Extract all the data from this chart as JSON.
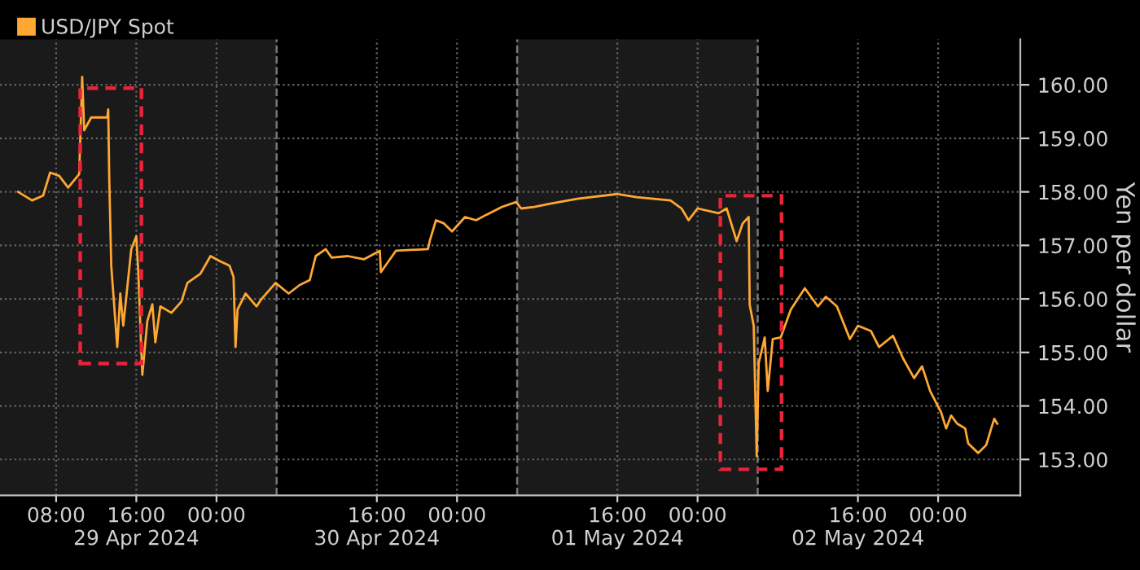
{
  "chart_data": {
    "type": "line",
    "ylabel": "Yen per dollar",
    "series": [
      {
        "name": "USD/JPY Spot",
        "color": "#ffa733",
        "x": [
          "2024-04-29T04:12",
          "2024-04-29T05:36",
          "2024-04-29T06:42",
          "2024-04-29T07:24",
          "2024-04-29T08:18",
          "2024-04-29T09:12",
          "2024-04-29T10:18",
          "2024-04-29T10:36",
          "2024-04-29T10:48",
          "2024-04-29T11:30",
          "2024-04-29T13:06",
          "2024-04-29T13:12",
          "2024-04-29T13:18",
          "2024-04-29T13:30",
          "2024-04-29T14:06",
          "2024-04-29T14:24",
          "2024-04-29T14:42",
          "2024-04-29T15:30",
          "2024-04-29T16:00",
          "2024-04-29T16:12",
          "2024-04-29T16:24",
          "2024-04-29T16:36",
          "2024-04-29T17:06",
          "2024-04-29T17:36",
          "2024-04-29T17:54",
          "2024-04-29T18:24",
          "2024-04-29T19:30",
          "2024-04-29T20:30",
          "2024-04-29T21:06",
          "2024-04-29T22:24",
          "2024-04-29T23:24",
          "2024-04-30T00:18",
          "2024-04-30T01:18",
          "2024-04-30T01:42",
          "2024-04-30T01:54",
          "2024-04-30T02:06",
          "2024-04-30T02:54",
          "2024-04-30T04:00",
          "2024-04-30T04:30",
          "2024-04-30T05:54",
          "2024-04-30T07:12",
          "2024-04-30T08:18",
          "2024-04-30T09:18",
          "2024-04-30T09:54",
          "2024-04-30T10:54",
          "2024-04-30T11:30",
          "2024-04-30T13:06",
          "2024-04-30T14:42",
          "2024-04-30T16:18",
          "2024-04-30T16:24",
          "2024-04-30T17:54",
          "2024-04-30T21:06",
          "2024-04-30T21:18",
          "2024-04-30T21:54",
          "2024-04-30T22:42",
          "2024-04-30T23:30",
          "2024-05-01T00:48",
          "2024-05-01T01:54",
          "2024-05-01T02:54",
          "2024-05-01T04:30",
          "2024-05-01T05:54",
          "2024-05-01T06:24",
          "2024-05-01T07:42",
          "2024-05-01T09:18",
          "2024-05-01T12:00",
          "2024-05-01T16:00",
          "2024-05-01T17:54",
          "2024-05-01T21:18",
          "2024-05-01T22:24",
          "2024-05-01T23:06",
          "2024-05-02T00:00",
          "2024-05-02T02:06",
          "2024-05-02T02:54",
          "2024-05-02T03:54",
          "2024-05-02T04:30",
          "2024-05-02T05:06",
          "2024-05-02T05:12",
          "2024-05-02T05:36",
          "2024-05-02T05:54",
          "2024-05-02T06:06",
          "2024-05-02T06:42",
          "2024-05-02T07:00",
          "2024-05-02T07:30",
          "2024-05-02T08:18",
          "2024-05-02T09:18",
          "2024-05-02T10:42",
          "2024-05-02T12:00",
          "2024-05-02T12:48",
          "2024-05-02T13:54",
          "2024-05-02T15:12",
          "2024-05-02T16:00",
          "2024-05-02T17:18",
          "2024-05-02T18:06",
          "2024-05-02T19:30",
          "2024-05-02T20:30",
          "2024-05-02T21:36",
          "2024-05-02T22:24",
          "2024-05-02T23:12",
          "2024-05-03T00:18",
          "2024-05-03T00:48",
          "2024-05-03T01:18",
          "2024-05-03T01:54",
          "2024-05-03T02:42",
          "2024-05-03T03:00",
          "2024-05-03T04:00",
          "2024-05-03T04:48",
          "2024-05-03T05:18",
          "2024-05-03T05:36",
          "2024-05-03T05:54"
        ],
        "values": [
          158.0,
          157.84,
          157.93,
          158.36,
          158.3,
          158.08,
          158.33,
          160.15,
          159.15,
          159.39,
          159.39,
          159.54,
          158.24,
          156.62,
          155.1,
          156.1,
          155.5,
          156.93,
          157.17,
          156.5,
          155.5,
          154.58,
          155.59,
          155.9,
          155.19,
          155.86,
          155.74,
          155.95,
          156.3,
          156.47,
          156.8,
          156.71,
          156.62,
          156.41,
          155.1,
          155.8,
          156.1,
          155.86,
          156.0,
          156.3,
          156.1,
          156.26,
          156.35,
          156.8,
          156.93,
          156.77,
          156.8,
          156.74,
          156.9,
          156.5,
          156.9,
          156.93,
          157.1,
          157.47,
          157.41,
          157.26,
          157.53,
          157.47,
          157.57,
          157.72,
          157.81,
          157.69,
          157.72,
          157.78,
          157.87,
          157.96,
          157.9,
          157.84,
          157.69,
          157.47,
          157.69,
          157.6,
          157.69,
          157.08,
          157.41,
          157.53,
          155.89,
          155.5,
          153.06,
          154.8,
          155.28,
          154.28,
          155.25,
          155.28,
          155.8,
          156.2,
          155.86,
          156.04,
          155.86,
          155.25,
          155.5,
          155.4,
          155.1,
          155.31,
          154.89,
          154.52,
          154.74,
          154.28,
          153.88,
          153.58,
          153.82,
          153.67,
          153.58,
          153.3,
          153.12,
          153.27,
          153.58,
          153.76,
          153.67
        ]
      }
    ],
    "xlim": [
      "2024-04-29T02:24",
      "2024-05-03T08:12"
    ],
    "xticks": [
      {
        "value": "2024-04-29T08:00",
        "label": "08:00"
      },
      {
        "value": "2024-04-29T16:00",
        "label": "16:00\n29 Apr 2024"
      },
      {
        "value": "2024-04-30T00:00",
        "label": "00:00"
      },
      {
        "value": "2024-04-30T16:00",
        "label": "16:00\n30 Apr 2024"
      },
      {
        "value": "2024-05-01T00:00",
        "label": "00:00"
      },
      {
        "value": "2024-05-01T16:00",
        "label": "16:00\n01 May 2024"
      },
      {
        "value": "2024-05-02T00:00",
        "label": "00:00"
      },
      {
        "value": "2024-05-02T16:00",
        "label": "16:00\n02 May 2024"
      },
      {
        "value": "2024-05-03T00:00",
        "label": "00:00"
      }
    ],
    "ylim": [
      152.33,
      160.85
    ],
    "yticks": [
      {
        "value": 153,
        "label": "153.00"
      },
      {
        "value": 154,
        "label": "154.00"
      },
      {
        "value": 155,
        "label": "155.00"
      },
      {
        "value": 156,
        "label": "156.00"
      },
      {
        "value": 157,
        "label": "157.00"
      },
      {
        "value": 158,
        "label": "158.00"
      },
      {
        "value": 159,
        "label": "159.00"
      },
      {
        "value": 160,
        "label": "160.00"
      }
    ],
    "ref_lines": [
      {
        "axis": "x",
        "value": "2024-04-30T06:00",
        "color": "#777777",
        "line_style": "dashed"
      },
      {
        "axis": "x",
        "value": "2024-05-01T06:00",
        "color": "#777777",
        "line_style": "dashed"
      },
      {
        "axis": "x",
        "value": "2024-05-02T06:00",
        "color": "#777777",
        "line_style": "dashed"
      }
    ],
    "bands": [
      {
        "axis": "x",
        "from": "2024-04-29T02:24",
        "to": "2024-04-30T06:00",
        "color": "#1a1a1a"
      },
      {
        "axis": "x",
        "from": "2024-05-01T06:00",
        "to": "2024-05-02T06:00",
        "color": "#1a1a1a"
      }
    ],
    "grid": true,
    "legend": "top left",
    "marker": "none",
    "line_style": "solid"
  }
}
